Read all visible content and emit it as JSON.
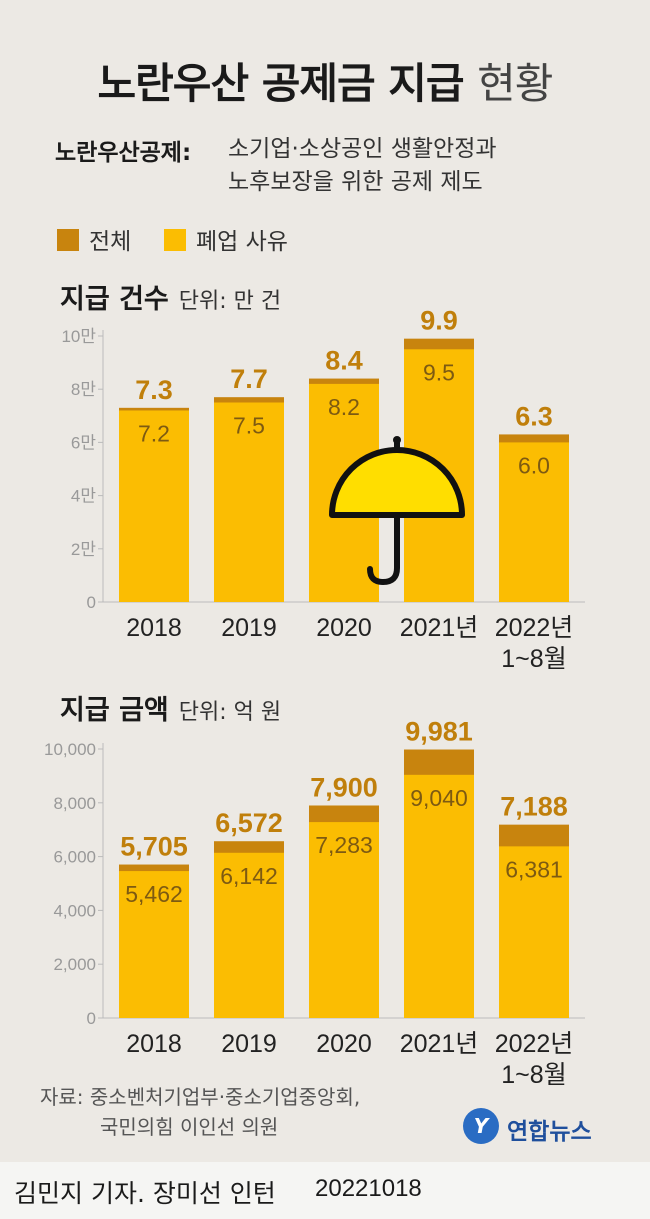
{
  "title": {
    "main": "노란우산 공제금 지급",
    "light": "현황"
  },
  "subtitle": {
    "key": "노란우산공제:",
    "line1": "소기업·소상공인 생활안정과",
    "line2": "노후보장을 위한 공제 제도"
  },
  "legend": {
    "total": "전체",
    "closure": "폐업 사유"
  },
  "colors": {
    "total": "#c8840e",
    "closure": "#fbbd02",
    "umbrella_canopy": "#ffde00",
    "background": "#ece9e4"
  },
  "section1": {
    "title": "지급 건수",
    "unit": "단위: 만 건"
  },
  "section2": {
    "title": "지급 금액",
    "unit": "단위: 억 원"
  },
  "chart_data": [
    {
      "type": "bar",
      "title": "지급 건수",
      "unit": "단위: 만 건",
      "categories": [
        "2018",
        "2019",
        "2020",
        "2021년",
        "2022년\n1~8월"
      ],
      "series": [
        {
          "name": "전체",
          "values": [
            7.3,
            7.7,
            8.4,
            9.9,
            6.3
          ],
          "labels": [
            "7.3",
            "7.7",
            "8.4",
            "9.9",
            "6.3"
          ]
        },
        {
          "name": "폐업 사유",
          "values": [
            7.2,
            7.5,
            8.2,
            9.5,
            6.0
          ],
          "labels": [
            "7.2",
            "7.5",
            "8.2",
            "9.5",
            "6.0"
          ]
        }
      ],
      "yticks": [
        0,
        2,
        4,
        6,
        8,
        10
      ],
      "ytick_labels": [
        "0",
        "2만",
        "4만",
        "6만",
        "8만",
        "10만"
      ],
      "ylim": [
        0,
        10
      ],
      "grid": false
    },
    {
      "type": "bar",
      "title": "지급 금액",
      "unit": "단위: 억 원",
      "categories": [
        "2018",
        "2019",
        "2020",
        "2021년",
        "2022년\n1~8월"
      ],
      "series": [
        {
          "name": "전체",
          "values": [
            5705,
            6572,
            7900,
            9981,
            7188
          ],
          "labels": [
            "5,705",
            "6,572",
            "7,900",
            "9,981",
            "7,188"
          ]
        },
        {
          "name": "폐업 사유",
          "values": [
            5462,
            6142,
            7283,
            9040,
            6381
          ],
          "labels": [
            "5,462",
            "6,142",
            "7,283",
            "9,040",
            "6,381"
          ]
        }
      ],
      "yticks": [
        0,
        2000,
        4000,
        6000,
        8000,
        10000
      ],
      "ytick_labels": [
        "0",
        "2,000",
        "4,000",
        "6,000",
        "8,000",
        "10,000"
      ],
      "ylim": [
        0,
        10000
      ],
      "grid": false
    }
  ],
  "source": {
    "line1": "자료: 중소벤처기업부·중소기업중앙회,",
    "line2": "국민의힘 이인선 의원"
  },
  "logo": {
    "mark": "Y",
    "text": "연합뉴스"
  },
  "footer": {
    "credit": "김민지 기자. 장미선 인턴",
    "date": "20221018"
  }
}
